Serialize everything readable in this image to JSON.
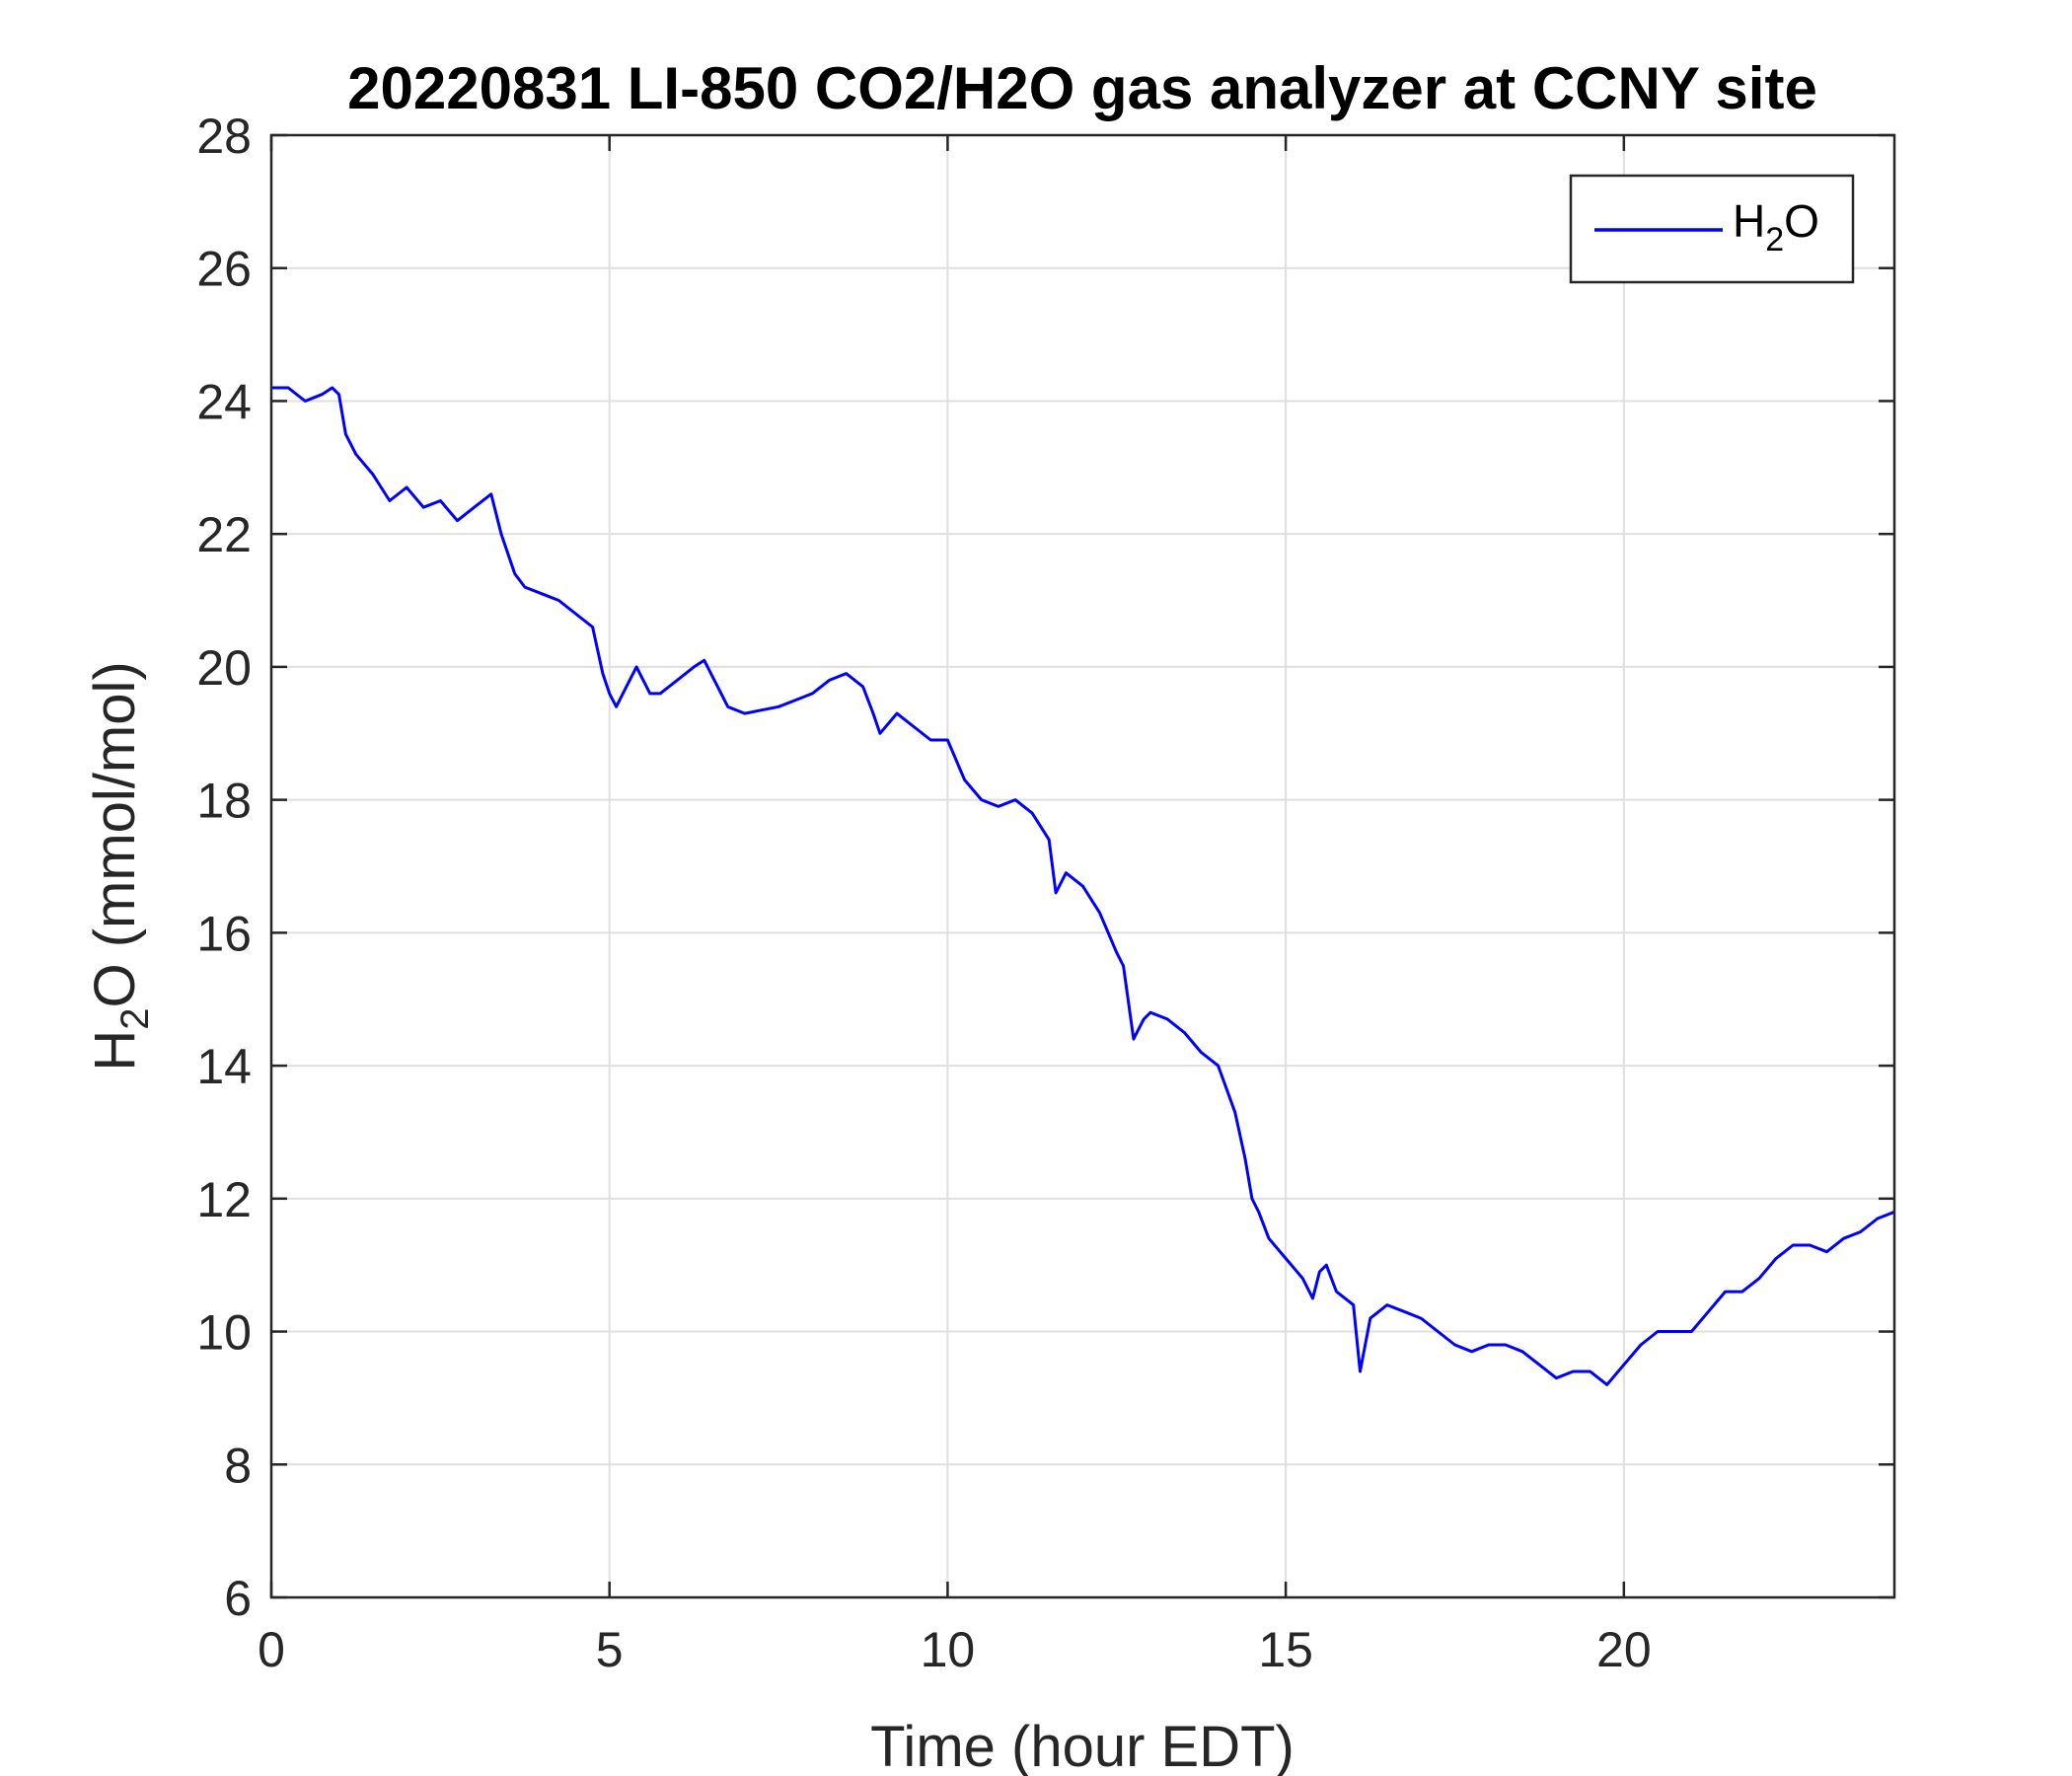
{
  "chart_data": {
    "type": "line",
    "title": "20220831 LI-850 CO2/H2O gas analyzer at CCNY site",
    "xlabel": "Time (hour EDT)",
    "ylabel": {
      "base": "H",
      "sub": "2",
      "rest": "O (mmol/mol)"
    },
    "xlim": [
      0,
      24
    ],
    "ylim": [
      6,
      28
    ],
    "xticks": [
      0,
      5,
      10,
      15,
      20
    ],
    "yticks": [
      6,
      8,
      10,
      12,
      14,
      16,
      18,
      20,
      22,
      24,
      26,
      28
    ],
    "grid": true,
    "legend": {
      "position": "top-right"
    },
    "colors": {
      "series": "#0000ff",
      "grid": "#dfdfdf",
      "axis": "#262626"
    },
    "series": [
      {
        "name": {
          "base": "H",
          "sub": "2",
          "rest": "O"
        },
        "x": [
          0,
          0.25,
          0.5,
          0.75,
          0.9,
          1.0,
          1.1,
          1.25,
          1.5,
          1.75,
          2.0,
          2.25,
          2.5,
          2.75,
          3.0,
          3.25,
          3.4,
          3.6,
          3.75,
          4.0,
          4.25,
          4.5,
          4.75,
          4.9,
          5.0,
          5.1,
          5.25,
          5.4,
          5.6,
          5.75,
          6.0,
          6.25,
          6.4,
          6.6,
          6.75,
          7.0,
          7.25,
          7.5,
          7.75,
          8.0,
          8.25,
          8.5,
          8.75,
          8.9,
          9.0,
          9.25,
          9.5,
          9.75,
          10.0,
          10.25,
          10.5,
          10.75,
          11.0,
          11.25,
          11.5,
          11.6,
          11.75,
          12.0,
          12.25,
          12.5,
          12.6,
          12.75,
          12.9,
          13.0,
          13.25,
          13.5,
          13.75,
          14.0,
          14.25,
          14.4,
          14.5,
          14.6,
          14.75,
          15.0,
          15.25,
          15.4,
          15.5,
          15.6,
          15.75,
          16.0,
          16.1,
          16.25,
          16.5,
          16.75,
          17.0,
          17.25,
          17.5,
          17.75,
          18.0,
          18.25,
          18.5,
          18.75,
          19.0,
          19.25,
          19.5,
          19.75,
          20.0,
          20.25,
          20.5,
          20.75,
          21.0,
          21.25,
          21.5,
          21.75,
          22.0,
          22.25,
          22.5,
          22.75,
          23.0,
          23.25,
          23.5,
          23.75,
          24.0
        ],
        "y": [
          24.2,
          24.2,
          24.0,
          24.1,
          24.2,
          24.1,
          23.5,
          23.2,
          22.9,
          22.5,
          22.7,
          22.4,
          22.5,
          22.2,
          22.4,
          22.6,
          22.0,
          21.4,
          21.2,
          21.1,
          21.0,
          20.8,
          20.6,
          19.9,
          19.6,
          19.4,
          19.7,
          20.0,
          19.6,
          19.6,
          19.8,
          20.0,
          20.1,
          19.7,
          19.4,
          19.3,
          19.35,
          19.4,
          19.5,
          19.6,
          19.8,
          19.9,
          19.7,
          19.3,
          19.0,
          19.3,
          19.1,
          18.9,
          18.9,
          18.3,
          18.0,
          17.9,
          18.0,
          17.8,
          17.4,
          16.6,
          16.9,
          16.7,
          16.3,
          15.7,
          15.5,
          14.4,
          14.7,
          14.8,
          14.7,
          14.5,
          14.2,
          14.0,
          13.3,
          12.6,
          12.0,
          11.8,
          11.4,
          11.1,
          10.8,
          10.5,
          10.9,
          11.0,
          10.6,
          10.4,
          9.4,
          10.2,
          10.4,
          10.3,
          10.2,
          10.0,
          9.8,
          9.7,
          9.8,
          9.8,
          9.7,
          9.5,
          9.3,
          9.4,
          9.4,
          9.2,
          9.5,
          9.8,
          10.0,
          10.0,
          10.0,
          10.3,
          10.6,
          10.6,
          10.8,
          11.1,
          11.3,
          11.3,
          11.2,
          11.4,
          11.5,
          11.7,
          11.8
        ]
      }
    ]
  }
}
